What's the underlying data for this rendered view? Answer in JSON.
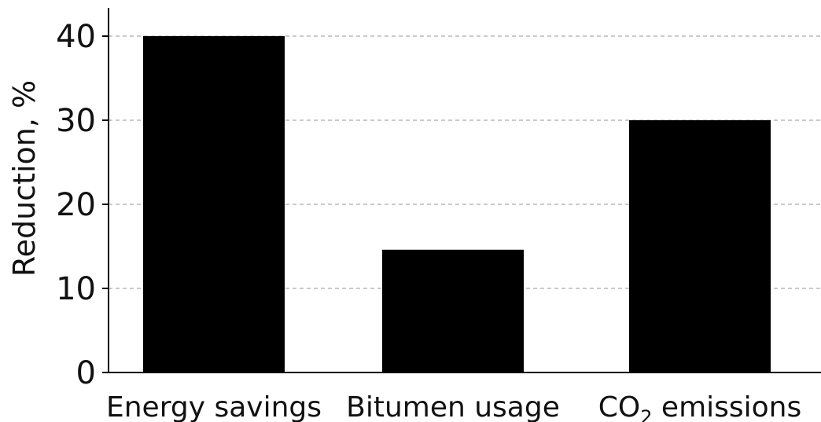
{
  "chart_data": {
    "type": "bar",
    "title": "",
    "xlabel": "",
    "ylabel": "Reduction, %",
    "ylim": [
      0,
      42
    ],
    "yticks": [
      0,
      10,
      20,
      30,
      40
    ],
    "grid": "horizontal-dashed",
    "categories": [
      {
        "label": "Energy savings",
        "subscript": "",
        "suffix": ""
      },
      {
        "label": "Bitumen usage",
        "subscript": "",
        "suffix": ""
      },
      {
        "label": "CO",
        "subscript": "2",
        "suffix": " emissions"
      }
    ],
    "values": [
      40,
      14.6,
      30
    ],
    "colors": {
      "bar": "#000000",
      "grid": "#b8b8b8",
      "axis": "#000000"
    }
  }
}
